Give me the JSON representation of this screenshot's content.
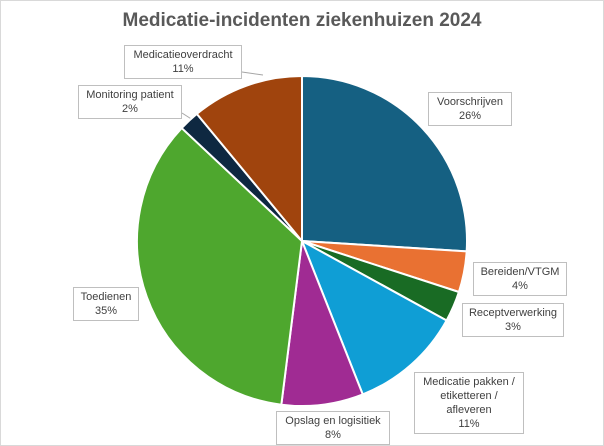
{
  "chart_data": {
    "type": "pie",
    "title": "Medicatie-incidenten ziekenhuizen 2024",
    "slices": [
      {
        "label": "Voorschrijven",
        "value": 26,
        "value_label": "26%",
        "color": "#156082"
      },
      {
        "label": "Bereiden/VTGM",
        "value": 4,
        "value_label": "4%",
        "color": "#e97132"
      },
      {
        "label": "Receptverwerking",
        "value": 3,
        "value_label": "3%",
        "color": "#196b24"
      },
      {
        "label": "Medicatie pakken / etiketteren / afleveren",
        "label_lines": [
          "Medicatie pakken /",
          "etiketteren /",
          "afleveren"
        ],
        "value": 11,
        "value_label": "11%",
        "color": "#0f9ed5"
      },
      {
        "label": "Opslag en logisitiek",
        "value": 8,
        "value_label": "8%",
        "color": "#a02b93"
      },
      {
        "label": "Toedienen",
        "value": 35,
        "value_label": "35%",
        "color": "#4ea72e"
      },
      {
        "label": "Monitoring patient",
        "value": 2,
        "value_label": "2%",
        "color": "#0e2841"
      },
      {
        "label": "Medicatieoverdracht",
        "value": 11,
        "value_label": "11%",
        "color": "#a0440d"
      }
    ],
    "start_angle": "12 o'clock",
    "direction": "clockwise",
    "legend": "none",
    "data_labels": "callouts"
  }
}
